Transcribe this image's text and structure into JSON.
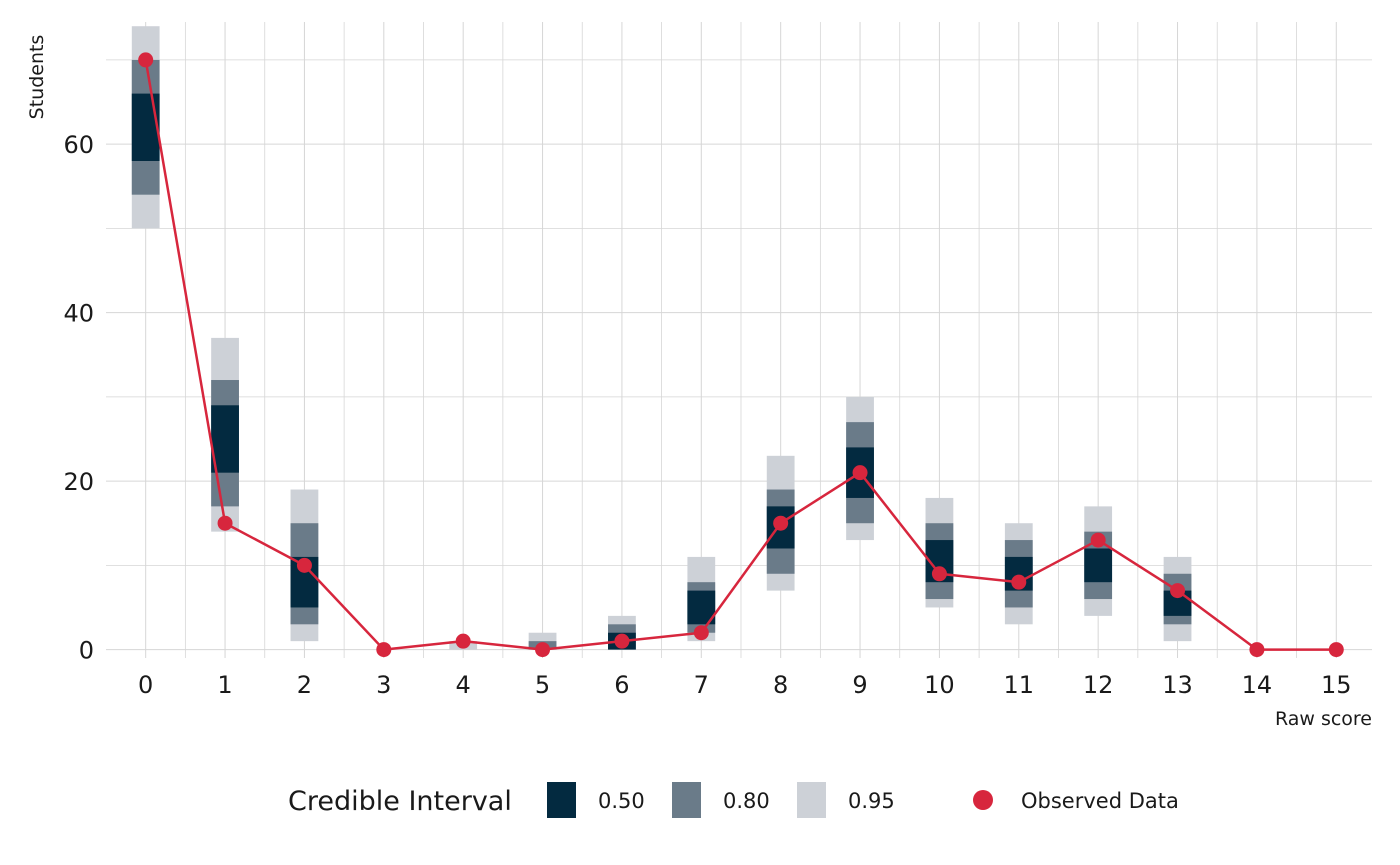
{
  "chart_data": {
    "type": "interval_plot",
    "xlabel": "Raw score",
    "ylabel": "Students",
    "x": [
      0,
      1,
      2,
      3,
      4,
      5,
      6,
      7,
      8,
      9,
      10,
      11,
      12,
      13,
      14,
      15
    ],
    "x_tick_labels": [
      "0",
      "1",
      "2",
      "3",
      "4",
      "5",
      "6",
      "7",
      "8",
      "9",
      "10",
      "11",
      "12",
      "13",
      "14",
      "15"
    ],
    "y_ticks": [
      0,
      20,
      40,
      60
    ],
    "y_tick_labels": [
      "0",
      "20",
      "40",
      "60"
    ],
    "xlim": [
      -0.5,
      15.45
    ],
    "ylim": [
      -1,
      74.5
    ],
    "grid": true,
    "legend_position": "bottom",
    "intervals": [
      {
        "level": "0.50",
        "color": "#032a40",
        "low": [
          58,
          21,
          5,
          null,
          null,
          null,
          0,
          3,
          12,
          18,
          8,
          7,
          8,
          4,
          null,
          null
        ],
        "high": [
          66,
          29,
          11,
          null,
          null,
          null,
          2,
          7,
          17,
          24,
          13,
          11,
          12,
          7,
          null,
          null
        ]
      },
      {
        "level": "0.80",
        "color": "#6a7b89",
        "low": [
          54,
          17,
          3,
          null,
          null,
          0,
          0,
          2,
          9,
          15,
          6,
          5,
          6,
          3,
          null,
          null
        ],
        "high": [
          70,
          32,
          15,
          null,
          null,
          1,
          3,
          8,
          19,
          27,
          15,
          13,
          14,
          9,
          null,
          null
        ]
      },
      {
        "level": "0.95",
        "color": "#cdd1d7",
        "low": [
          50,
          14,
          1,
          null,
          0,
          0,
          0,
          1,
          7,
          13,
          5,
          3,
          4,
          1,
          null,
          null
        ],
        "high": [
          74,
          37,
          19,
          null,
          1,
          2,
          4,
          11,
          23,
          30,
          18,
          15,
          17,
          11,
          null,
          null
        ]
      }
    ],
    "series": [
      {
        "name": "Observed Data",
        "color": "#d7263d",
        "values": [
          70,
          15,
          10,
          0,
          1,
          0,
          1,
          2,
          15,
          21,
          9,
          8,
          13,
          7,
          0,
          0
        ]
      }
    ],
    "legend": {
      "title": "Credible Interval",
      "interval_labels": [
        "0.50",
        "0.80",
        "0.95"
      ],
      "observed_label": "Observed Data"
    }
  }
}
